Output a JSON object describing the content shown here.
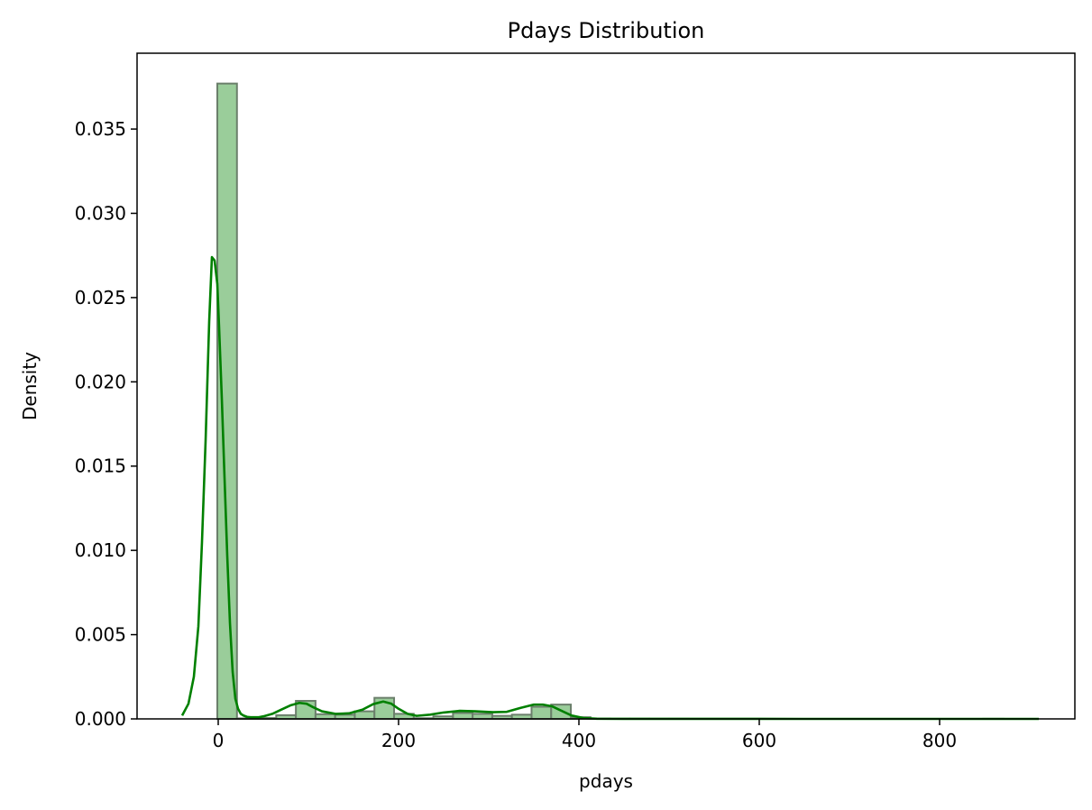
{
  "chart_data": {
    "type": "bar",
    "title": "Pdays Distribution",
    "xlabel": "pdays",
    "ylabel": "Density",
    "xlim": [
      -90,
      950
    ],
    "ylim": [
      0,
      0.0395
    ],
    "xticks": [
      0,
      200,
      400,
      600,
      800
    ],
    "yticks": [
      0.0,
      0.005,
      0.01,
      0.015,
      0.02,
      0.025,
      0.03,
      0.035
    ],
    "xtick_labels": [
      "0",
      "200",
      "400",
      "600",
      "800"
    ],
    "ytick_labels": [
      "0.000",
      "0.005",
      "0.010",
      "0.015",
      "0.020",
      "0.025",
      "0.030",
      "0.035"
    ],
    "bar_fill": "#9acd9a",
    "bar_edge": "#6b7f6b",
    "kde_color": "#008000",
    "histogram": {
      "bin_edges": [
        -1,
        20.78,
        42.56,
        64.34,
        86.12,
        107.9,
        129.68,
        151.46,
        173.24,
        195.02,
        216.8,
        238.58,
        260.36,
        282.14,
        303.92,
        325.7,
        347.48,
        369.26,
        391.04,
        412.82,
        434.6,
        456.38,
        478.16,
        499.94,
        521.72,
        543.5,
        565.28,
        587.06,
        608.84,
        630.62,
        652.4,
        674.18,
        695.96,
        717.74,
        739.52,
        761.3,
        783.08,
        804.86,
        826.64,
        848.42,
        871
      ],
      "densities": [
        0.0377,
        3e-05,
        5e-05,
        0.00022,
        0.00107,
        0.00028,
        0.00025,
        0.00045,
        0.00125,
        0.0003,
        4e-05,
        0.00015,
        0.00035,
        0.0003,
        0.00018,
        0.00025,
        0.00072,
        0.00085,
        0.0001,
        2e-05,
        1e-05,
        1e-05,
        5e-06,
        5e-06,
        0,
        0,
        0,
        0,
        0,
        0,
        0,
        0,
        0,
        0,
        0,
        0,
        0,
        0,
        0,
        5e-06
      ]
    },
    "kde": {
      "x": [
        -40,
        -33,
        -27,
        -22,
        -18,
        -14,
        -10,
        -7,
        -4,
        -1,
        1,
        4,
        7,
        10,
        13,
        16,
        19,
        22,
        25,
        28,
        32,
        36,
        40,
        45,
        50,
        60,
        70,
        80,
        90,
        98,
        105,
        115,
        130,
        145,
        160,
        172,
        183,
        192,
        200,
        210,
        220,
        235,
        250,
        268,
        285,
        305,
        320,
        335,
        350,
        360,
        370,
        380,
        392,
        405,
        420,
        450,
        500,
        550,
        600,
        700,
        800,
        910
      ],
      "y": [
        0.0002,
        0.0009,
        0.0025,
        0.0055,
        0.0105,
        0.0165,
        0.0236,
        0.0274,
        0.0272,
        0.0258,
        0.0232,
        0.019,
        0.0143,
        0.0097,
        0.0057,
        0.0028,
        0.0012,
        0.0006,
        0.0003,
        0.0002,
        0.00012,
        0.0001,
        0.0001,
        0.0001,
        0.00015,
        0.0003,
        0.00055,
        0.0008,
        0.00095,
        0.0009,
        0.0007,
        0.00045,
        0.0003,
        0.00033,
        0.00055,
        0.00088,
        0.00103,
        0.0009,
        0.0006,
        0.0003,
        0.00018,
        0.00025,
        0.00038,
        0.00048,
        0.00045,
        0.0004,
        0.00042,
        0.00065,
        0.00085,
        0.00085,
        0.00075,
        0.0005,
        0.0002,
        5e-05,
        1e-05,
        5e-06,
        3e-06,
        2e-06,
        1e-06,
        0,
        0,
        0
      ]
    }
  }
}
